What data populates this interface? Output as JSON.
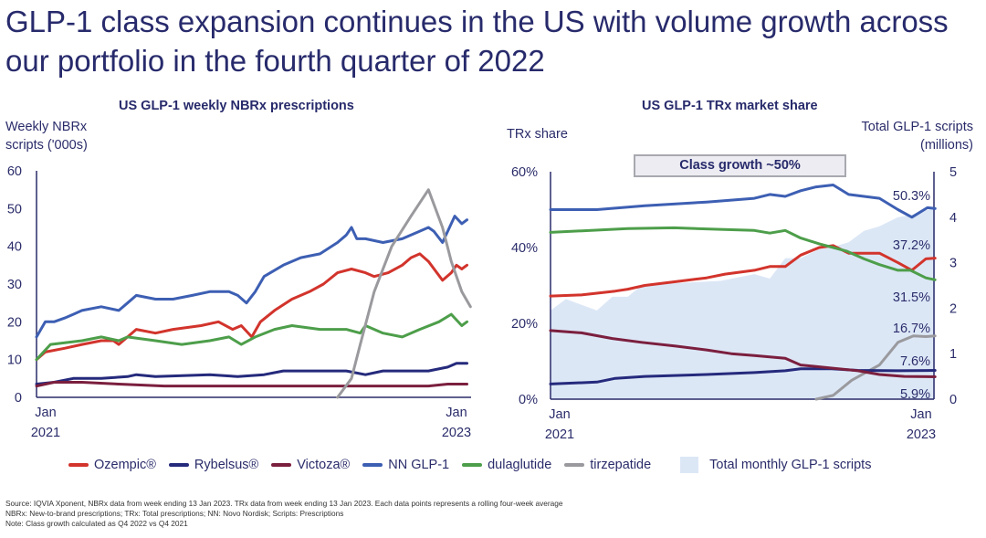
{
  "title": "GLP-1 class expansion continues in the US with volume growth across our portfolio in the fourth quarter of 2022",
  "colors": {
    "ozempic": "#d2342c",
    "rybelsus": "#252a7c",
    "victoza": "#7b1f3e",
    "nn_glp1": "#3d5fb3",
    "dulaglutide": "#4d9e4a",
    "tirzepatide": "#9a9a9e",
    "area": "#dce7f6"
  },
  "legend": [
    {
      "key": "ozempic",
      "label": "Ozempic®"
    },
    {
      "key": "rybelsus",
      "label": "Rybelsus®"
    },
    {
      "key": "victoza",
      "label": "Victoza®"
    },
    {
      "key": "nn_glp1",
      "label": "NN GLP-1"
    },
    {
      "key": "dulaglutide",
      "label": "dulaglutide"
    },
    {
      "key": "tirzepatide",
      "label": "tirzepatide"
    },
    {
      "key": "area",
      "label": "Total monthly GLP-1 scripts"
    }
  ],
  "footnotes": [
    "Source: IQVIA Xponent, NBRx data from week ending 13 Jan 2023. TRx data from week ending 13 Jan 2023. Each data points represents a rolling four-week average",
    "NBRx: New-to-brand prescriptions; TRx: Total prescriptions; NN: Novo Nordisk; Scripts: Prescriptions",
    "Note: Class growth calculated as Q4 2022 vs Q4 2021"
  ],
  "chart_data": [
    {
      "type": "line",
      "title": "US GLP-1 weekly NBRx prescriptions",
      "ylabel": "Weekly NBRx scripts ('000s)",
      "ylabel_lines": [
        "Weekly NBRx",
        "scripts ('000s)"
      ],
      "xlabel": "",
      "x_unit": "months since Jan 2021",
      "xticks": [
        {
          "x": 0,
          "l1": "Jan",
          "l2": "2021"
        },
        {
          "x": 24,
          "l1": "Jan",
          "l2": "2023"
        }
      ],
      "ylim": [
        0,
        60
      ],
      "yticks": [
        0,
        10,
        20,
        30,
        40,
        50,
        60
      ],
      "series": [
        {
          "key": "nn_glp1",
          "name": "NN GLP-1",
          "x": [
            0,
            0.5,
            1,
            1.6,
            2.1,
            2.6,
            3.7,
            4.7,
            5.2,
            5.7,
            6.8,
            7.8,
            8.9,
            9.9,
            11,
            11.5,
            12,
            12.5,
            13,
            14.1,
            15.1,
            16.2,
            17.2,
            17.7,
            18,
            18.3,
            18.8,
            19.8,
            20.9,
            21.9,
            22.4,
            22.7,
            23.2,
            23.9,
            24.3,
            24.6
          ],
          "y": [
            16,
            20,
            20,
            21,
            22,
            23,
            24,
            23,
            25,
            27,
            26,
            26,
            27,
            28,
            28,
            27,
            25,
            28,
            32,
            35,
            37,
            38,
            41,
            43,
            45,
            42,
            42,
            41,
            42,
            44,
            45,
            44,
            41,
            48,
            46,
            47
          ]
        },
        {
          "key": "ozempic",
          "name": "Ozempic®",
          "x": [
            0,
            0.5,
            1.6,
            2.6,
            3.7,
            4.4,
            4.7,
            5.7,
            6.8,
            7.8,
            9.4,
            10.4,
            11.2,
            11.7,
            12.3,
            12.8,
            13.6,
            14.6,
            15.6,
            16.4,
            17.2,
            18,
            18.8,
            19.3,
            20.1,
            20.9,
            21.4,
            21.9,
            22.4,
            23.2,
            23.7,
            24,
            24.3,
            24.6
          ],
          "y": [
            10,
            12,
            13,
            14,
            15,
            15,
            14,
            18,
            17,
            18,
            19,
            20,
            18,
            19,
            16,
            20,
            23,
            26,
            28,
            30,
            33,
            34,
            33,
            32,
            33,
            35,
            37,
            38,
            36,
            31,
            33,
            35,
            34,
            35
          ]
        },
        {
          "key": "dulaglutide",
          "name": "dulaglutide",
          "x": [
            0,
            0.8,
            2.6,
            3.7,
            4.7,
            5.2,
            6.8,
            8.3,
            9.9,
            11,
            11.7,
            12.5,
            13.6,
            14.6,
            16.2,
            17.7,
            18.5,
            18.8,
            19.8,
            20.9,
            21.9,
            23,
            23.7,
            24.3,
            24.6
          ],
          "y": [
            10,
            14,
            15,
            16,
            15,
            16,
            15,
            14,
            15,
            16,
            14,
            16,
            18,
            19,
            18,
            18,
            17,
            19,
            17,
            16,
            18,
            20,
            22,
            19,
            20
          ]
        },
        {
          "key": "rybelsus",
          "name": "Rybelsus®",
          "x": [
            0,
            1,
            2.1,
            3.7,
            5.2,
            5.7,
            6.8,
            9.9,
            11.5,
            13,
            14.1,
            16.2,
            17.7,
            18.8,
            19.8,
            21.4,
            22.4,
            23.5,
            24,
            24.6
          ],
          "y": [
            3.5,
            4,
            5,
            5,
            5.5,
            6,
            5.5,
            6,
            5.5,
            6,
            7,
            7,
            7,
            6,
            7,
            7,
            7,
            8,
            9,
            9
          ],
          "victoza_skip": null
        },
        {
          "key": "victoza",
          "name": "Victoza®",
          "x": [
            0,
            1,
            2.6,
            4.7,
            7.3,
            9.9,
            12.5,
            14.6,
            17.2,
            19.8,
            22.4,
            23.5,
            24.6
          ],
          "y": [
            3,
            4,
            4,
            3.5,
            3,
            3,
            3,
            3,
            3,
            3,
            3,
            3.5,
            3.5
          ]
        },
        {
          "key": "tirzepatide",
          "name": "tirzepatide",
          "x": [
            17.2,
            18,
            18.5,
            19.3,
            20.3,
            21.4,
            22.4,
            23.2,
            23.7,
            24.3,
            24.8
          ],
          "y": [
            0,
            5,
            14,
            28,
            40,
            48,
            55,
            45,
            36,
            28,
            24
          ]
        }
      ]
    },
    {
      "type": "line+area",
      "title": "US GLP-1 TRx market share",
      "ylabel": "TRx share",
      "y2label": "Total GLP-1 scripts (millions)",
      "y2label_lines": [
        "Total GLP-1 scripts",
        "(millions)"
      ],
      "x_unit": "months since Jan 2021",
      "xticks": [
        {
          "x": 0,
          "l1": "Jan",
          "l2": "2021"
        },
        {
          "x": 24,
          "l1": "Jan",
          "l2": "2023"
        }
      ],
      "ylim": [
        0,
        60
      ],
      "yticks": [
        {
          "v": 0,
          "l": "0%"
        },
        {
          "v": 20,
          "l": "20%"
        },
        {
          "v": 40,
          "l": "40%"
        },
        {
          "v": 60,
          "l": "60%"
        }
      ],
      "y2lim": [
        0,
        5
      ],
      "y2ticks": [
        0,
        1,
        2,
        3,
        4,
        5
      ],
      "annotation": "Class growth ~50%",
      "area": {
        "key": "area",
        "name": "Total monthly GLP-1 scripts",
        "x": [
          0,
          1,
          3,
          4,
          5,
          5.9,
          8.1,
          11,
          13.2,
          14.2,
          15.2,
          16.2,
          17.4,
          18.3,
          19.3,
          20.3,
          21.3,
          22.5,
          23.4,
          24.3,
          24.9
        ],
        "y": [
          1.95,
          2.2,
          1.95,
          2.25,
          2.25,
          2.5,
          2.55,
          2.6,
          2.75,
          2.65,
          3.1,
          3.1,
          3.3,
          3.35,
          3.45,
          3.7,
          3.8,
          4.0,
          4.05,
          4.15,
          4.2
        ]
      },
      "series": [
        {
          "key": "nn_glp1",
          "name": "NN GLP-1",
          "end_label": "50.3%",
          "x": [
            0,
            3,
            6.1,
            10.1,
            13.2,
            14.2,
            15.2,
            16.2,
            17.2,
            18.3,
            19.3,
            21.3,
            22.5,
            23.4,
            24.4,
            24.9
          ],
          "y": [
            50,
            50,
            51,
            52,
            53,
            54,
            53.5,
            55,
            56,
            56.5,
            54,
            53,
            50,
            48,
            50.5,
            50.3
          ]
        },
        {
          "key": "ozempic",
          "name": "Ozempic®",
          "end_label": "37.2%",
          "x": [
            0,
            2,
            4.2,
            5,
            6.1,
            8.1,
            10.1,
            11.3,
            13.2,
            14.2,
            15.2,
            16.2,
            17.4,
            18.3,
            19.3,
            21.3,
            22.5,
            23.4,
            24.3,
            24.9
          ],
          "y": [
            27.2,
            27.5,
            28.5,
            29,
            30,
            31,
            32,
            33,
            34,
            35,
            35,
            38,
            40,
            40.5,
            38.5,
            38.5,
            36,
            34,
            37,
            37.2
          ]
        },
        {
          "key": "dulaglutide",
          "name": "dulaglutide",
          "end_label": "31.5%",
          "x": [
            0,
            5,
            8,
            11,
            13.2,
            14.2,
            15.2,
            16.2,
            17.4,
            18.3,
            19.2,
            20.3,
            21.3,
            22.5,
            23.3,
            24.3,
            24.9
          ],
          "y": [
            44,
            45,
            45.2,
            44.8,
            44.5,
            43.8,
            44.5,
            42.5,
            41,
            40,
            39,
            37,
            35.5,
            34,
            34,
            32,
            31.5
          ]
        },
        {
          "key": "tirzepatide",
          "name": "tirzepatide",
          "end_label": "16.7%",
          "x": [
            17.2,
            18.3,
            19.5,
            21.3,
            22.5,
            23.5,
            24.3,
            24.9
          ],
          "y": [
            0,
            1,
            5,
            9,
            15,
            16.7,
            16.5,
            16.7
          ]
        },
        {
          "key": "rybelsus",
          "name": "Rybelsus®",
          "end_label": "7.6%",
          "x": [
            0,
            3,
            4.2,
            6.1,
            10.1,
            13.2,
            15.2,
            16.2,
            18.2,
            19.9,
            22.5,
            24.9
          ],
          "y": [
            4,
            4.5,
            5.5,
            6,
            6.5,
            7,
            7.5,
            8,
            8,
            7.6,
            7.5,
            7.6
          ]
        },
        {
          "key": "victoza",
          "name": "Victoza®",
          "end_label": "5.9%",
          "x": [
            0,
            2,
            4,
            5.9,
            8.1,
            10.1,
            11.7,
            13.2,
            15.2,
            16.2,
            18.2,
            19.9,
            21.3,
            22.9,
            24.9
          ],
          "y": [
            18.1,
            17.5,
            16,
            15,
            14,
            13,
            12,
            11.5,
            10.8,
            9,
            8.2,
            7.5,
            6.5,
            6,
            5.9
          ]
        }
      ]
    }
  ]
}
